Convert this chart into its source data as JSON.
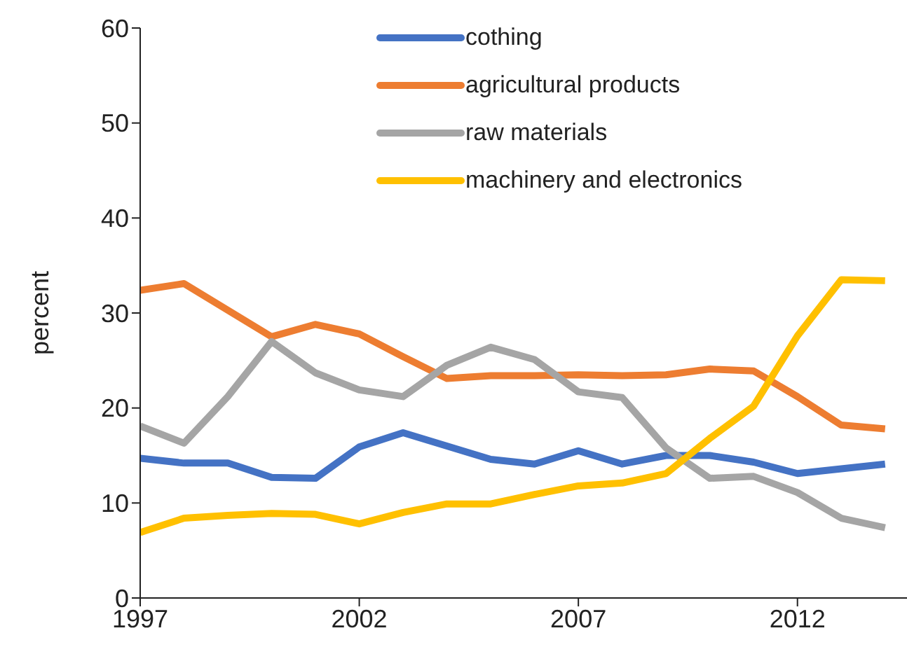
{
  "chart_data": {
    "type": "line",
    "ylabel": "percent",
    "x": [
      1997,
      1998,
      1999,
      2000,
      2001,
      2002,
      2003,
      2004,
      2005,
      2006,
      2007,
      2008,
      2009,
      2010,
      2011,
      2012,
      2013,
      2014
    ],
    "series": [
      {
        "name": "cothing",
        "color": "#4472c4",
        "values": [
          14.7,
          14.2,
          14.2,
          12.7,
          12.6,
          15.9,
          17.4,
          16.0,
          14.6,
          14.1,
          15.5,
          14.1,
          15.0,
          15.0,
          14.3,
          13.1,
          13.6,
          14.1
        ]
      },
      {
        "name": "agricultural products",
        "color": "#ed7d31",
        "values": [
          32.4,
          33.1,
          30.3,
          27.5,
          28.8,
          27.8,
          25.4,
          23.1,
          23.4,
          23.4,
          23.5,
          23.4,
          23.5,
          24.1,
          23.9,
          21.2,
          18.2,
          17.8
        ]
      },
      {
        "name": "raw materials",
        "color": "#a5a5a5",
        "values": [
          18.1,
          16.3,
          21.2,
          27.0,
          23.7,
          21.9,
          21.2,
          24.5,
          26.4,
          25.1,
          21.7,
          21.1,
          15.8,
          12.6,
          12.8,
          11.1,
          8.4,
          7.4
        ]
      },
      {
        "name": "machinery and electronics",
        "color": "#ffc000",
        "values": [
          6.9,
          8.4,
          8.7,
          8.9,
          8.8,
          7.8,
          9.0,
          9.9,
          9.9,
          10.9,
          11.8,
          12.1,
          13.1,
          16.8,
          20.2,
          27.6,
          33.5,
          33.4
        ]
      }
    ],
    "xlim": [
      1997,
      2014.5
    ],
    "xticks": [
      1997,
      2002,
      2007,
      2012
    ],
    "ylim": [
      0,
      60
    ],
    "yticks": [
      0,
      10,
      20,
      30,
      40,
      50,
      60
    ],
    "grid": false,
    "legend": "top",
    "marker": "none",
    "line_style": "solid"
  }
}
